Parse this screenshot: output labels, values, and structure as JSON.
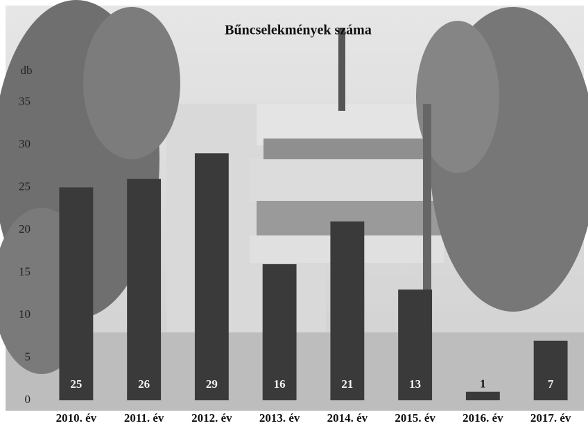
{
  "chart_data": {
    "type": "bar",
    "title": "Bűncselekmények száma",
    "y_label": "db",
    "categories": [
      "2010. év",
      "2011. év",
      "2012. év",
      "2013. év",
      "2014. év",
      "2015. év",
      "2016. év",
      "2017. év"
    ],
    "values": [
      25,
      26,
      29,
      16,
      21,
      13,
      1,
      7
    ],
    "color": "#3a3a3a",
    "ylim": [
      0,
      40
    ],
    "yticks": [
      0,
      5,
      10,
      15,
      20,
      25,
      30,
      35
    ],
    "grid": false
  }
}
